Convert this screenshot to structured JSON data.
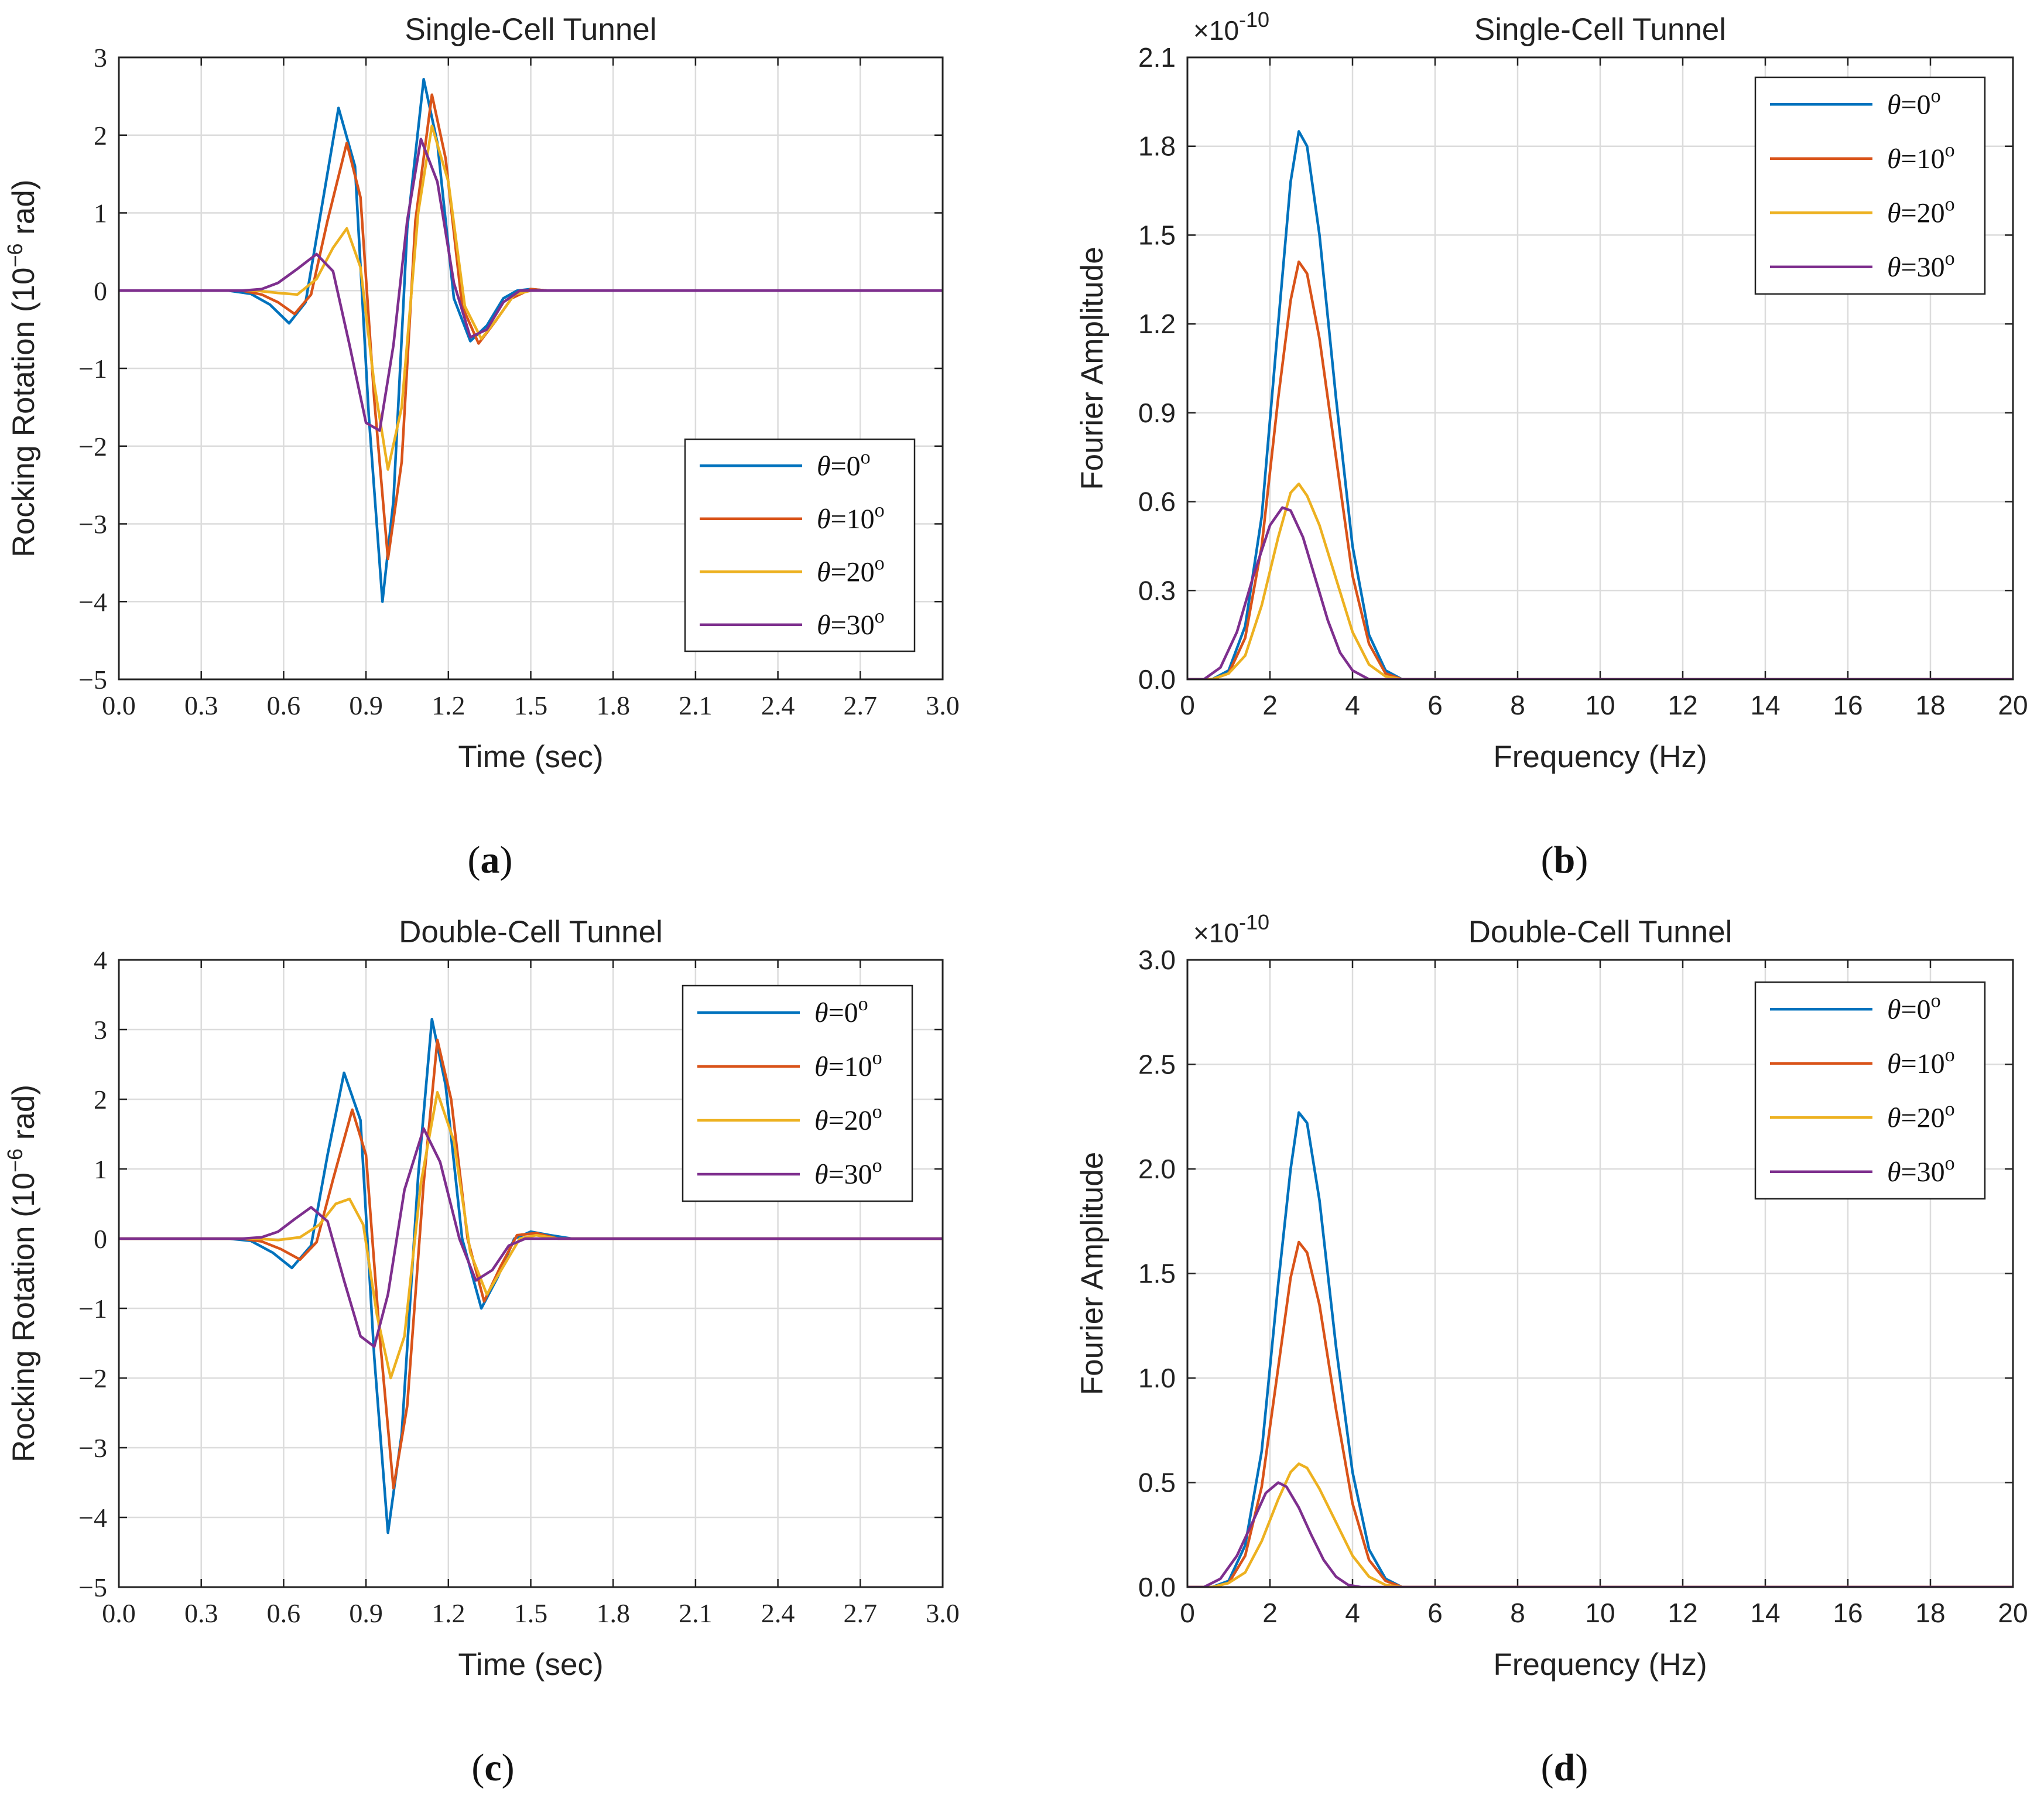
{
  "figure": {
    "captions": [
      "(a)",
      "(b)",
      "(c)",
      "(d)"
    ]
  },
  "colors": {
    "series": [
      "#0072BD",
      "#D95319",
      "#EDB120",
      "#7E2F8E"
    ],
    "grid": "#dcdcdc",
    "axis": "#222222"
  },
  "chart_data": [
    {
      "id": "a",
      "type": "line",
      "title": "Single-Cell Tunnel",
      "xlabel": "Time (sec)",
      "ylabel": "Rocking Rotation (10",
      "ylabel_exp": "−6",
      "ylabel_suffix": " rad)",
      "xlim": [
        0,
        3
      ],
      "ylim": [
        -5,
        3
      ],
      "xticks": [
        "0.0",
        "0.3",
        "0.6",
        "0.9",
        "1.2",
        "1.5",
        "1.8",
        "2.1",
        "2.4",
        "2.7",
        "3.0"
      ],
      "yticks": [
        "3",
        "2",
        "1",
        "0",
        "−1",
        "−2",
        "−3",
        "−4",
        "−5"
      ],
      "legend_position": "bottom-right",
      "series": [
        {
          "name": "θ=0°",
          "theta": "θ",
          "value": "=0",
          "deg": "o",
          "x": [
            0.0,
            0.4,
            0.48,
            0.55,
            0.62,
            0.68,
            0.74,
            0.8,
            0.86,
            0.91,
            0.96,
            1.0,
            1.05,
            1.11,
            1.16,
            1.22,
            1.28,
            1.34,
            1.4,
            1.45,
            1.5,
            1.56,
            1.65,
            3.0
          ],
          "y": [
            0,
            0,
            -0.04,
            -0.18,
            -0.42,
            -0.15,
            1.1,
            2.35,
            1.6,
            -1.6,
            -4.0,
            -2.7,
            0.8,
            2.72,
            1.9,
            -0.1,
            -0.65,
            -0.45,
            -0.1,
            0.0,
            0.02,
            0.0,
            0,
            0
          ]
        },
        {
          "name": "θ=10°",
          "theta": "θ",
          "value": "=10",
          "deg": "o",
          "x": [
            0.0,
            0.45,
            0.52,
            0.58,
            0.64,
            0.7,
            0.76,
            0.83,
            0.88,
            0.93,
            0.98,
            1.03,
            1.08,
            1.14,
            1.19,
            1.25,
            1.31,
            1.37,
            1.43,
            1.5,
            1.56,
            1.65,
            3.0
          ],
          "y": [
            0,
            0,
            -0.05,
            -0.15,
            -0.3,
            -0.05,
            0.9,
            1.9,
            1.2,
            -1.4,
            -3.45,
            -2.2,
            0.9,
            2.52,
            1.7,
            -0.2,
            -0.68,
            -0.4,
            -0.1,
            0.02,
            0.0,
            0,
            0
          ]
        },
        {
          "name": "θ=20°",
          "theta": "θ",
          "value": "=20",
          "deg": "o",
          "x": [
            0.0,
            0.5,
            0.58,
            0.65,
            0.72,
            0.78,
            0.83,
            0.88,
            0.93,
            0.98,
            1.03,
            1.09,
            1.14,
            1.2,
            1.26,
            1.32,
            1.38,
            1.44,
            1.5,
            1.58,
            3.0
          ],
          "y": [
            0,
            0,
            -0.03,
            -0.05,
            0.15,
            0.55,
            0.8,
            0.3,
            -1.2,
            -2.3,
            -1.5,
            1.0,
            2.12,
            1.4,
            -0.2,
            -0.62,
            -0.35,
            -0.05,
            0.0,
            0,
            0
          ]
        },
        {
          "name": "θ=30°",
          "theta": "θ",
          "value": "=30",
          "deg": "o",
          "x": [
            0.0,
            0.45,
            0.52,
            0.58,
            0.65,
            0.72,
            0.78,
            0.84,
            0.9,
            0.95,
            1.0,
            1.05,
            1.1,
            1.16,
            1.22,
            1.28,
            1.34,
            1.4,
            1.46,
            1.52,
            3.0
          ],
          "y": [
            0,
            0,
            0.02,
            0.1,
            0.28,
            0.47,
            0.25,
            -0.7,
            -1.7,
            -1.8,
            -0.7,
            0.9,
            1.95,
            1.4,
            0.1,
            -0.6,
            -0.5,
            -0.15,
            0.0,
            0,
            0
          ]
        }
      ]
    },
    {
      "id": "b",
      "type": "line",
      "title": "Single-Cell Tunnel",
      "xlabel": "Frequency (Hz)",
      "ylabel": "Fourier Amplitude",
      "scale_label": "×10",
      "scale_exp": "-10",
      "xlim": [
        0,
        20
      ],
      "ylim": [
        0,
        2.1
      ],
      "xticks": [
        "0",
        "2",
        "4",
        "6",
        "8",
        "10",
        "12",
        "14",
        "16",
        "18",
        "20"
      ],
      "yticks": [
        "2.1",
        "1.8",
        "1.5",
        "1.2",
        "0.9",
        "0.6",
        "0.3",
        "0.0"
      ],
      "legend_position": "top-right",
      "series": [
        {
          "name": "θ=0°",
          "theta": "θ",
          "value": "=0",
          "deg": "o",
          "x": [
            0,
            0.6,
            1.0,
            1.4,
            1.8,
            2.2,
            2.5,
            2.7,
            2.9,
            3.2,
            3.6,
            4.0,
            4.4,
            4.8,
            5.2,
            6.0,
            20
          ],
          "y": [
            0,
            0,
            0.03,
            0.18,
            0.55,
            1.2,
            1.68,
            1.85,
            1.8,
            1.5,
            0.95,
            0.45,
            0.15,
            0.03,
            0,
            0,
            0
          ]
        },
        {
          "name": "θ=10°",
          "theta": "θ",
          "value": "=10",
          "deg": "o",
          "x": [
            0,
            0.6,
            1.0,
            1.4,
            1.8,
            2.2,
            2.5,
            2.7,
            2.9,
            3.2,
            3.6,
            4.0,
            4.4,
            4.8,
            5.2,
            6.0,
            20
          ],
          "y": [
            0,
            0,
            0.02,
            0.14,
            0.45,
            0.95,
            1.28,
            1.41,
            1.37,
            1.15,
            0.75,
            0.35,
            0.12,
            0.02,
            0,
            0,
            0
          ]
        },
        {
          "name": "θ=20°",
          "theta": "θ",
          "value": "=20",
          "deg": "o",
          "x": [
            0,
            0.6,
            1.0,
            1.4,
            1.8,
            2.2,
            2.5,
            2.7,
            2.9,
            3.2,
            3.6,
            4.0,
            4.4,
            4.8,
            5.2,
            6.0,
            20
          ],
          "y": [
            0,
            0,
            0.02,
            0.08,
            0.25,
            0.48,
            0.63,
            0.66,
            0.62,
            0.52,
            0.34,
            0.16,
            0.05,
            0.01,
            0,
            0,
            0
          ]
        },
        {
          "name": "θ=30°",
          "theta": "θ",
          "value": "=30",
          "deg": "o",
          "x": [
            0,
            0.4,
            0.8,
            1.2,
            1.6,
            2.0,
            2.3,
            2.5,
            2.8,
            3.1,
            3.4,
            3.7,
            4.0,
            4.4,
            5.0,
            20
          ],
          "y": [
            0,
            0,
            0.04,
            0.16,
            0.35,
            0.52,
            0.58,
            0.57,
            0.48,
            0.34,
            0.2,
            0.09,
            0.03,
            0,
            0,
            0
          ]
        }
      ]
    },
    {
      "id": "c",
      "type": "line",
      "title": "Double-Cell Tunnel",
      "xlabel": "Time (sec)",
      "ylabel": "Rocking Rotation (10",
      "ylabel_exp": "−6",
      "ylabel_suffix": " rad)",
      "xlim": [
        0,
        3
      ],
      "ylim": [
        -5,
        4
      ],
      "xticks": [
        "0.0",
        "0.3",
        "0.6",
        "0.9",
        "1.2",
        "1.5",
        "1.8",
        "2.1",
        "2.4",
        "2.7",
        "3.0"
      ],
      "yticks": [
        "4",
        "3",
        "2",
        "1",
        "0",
        "−1",
        "−2",
        "−3",
        "−4",
        "−5"
      ],
      "legend_position": "top-right",
      "series": [
        {
          "name": "θ=0°",
          "theta": "θ",
          "value": "=0",
          "deg": "o",
          "x": [
            0.0,
            0.4,
            0.48,
            0.56,
            0.63,
            0.7,
            0.76,
            0.82,
            0.88,
            0.93,
            0.98,
            1.03,
            1.09,
            1.14,
            1.19,
            1.25,
            1.32,
            1.38,
            1.44,
            1.5,
            1.57,
            1.65,
            1.75,
            3.0
          ],
          "y": [
            0,
            0,
            -0.03,
            -0.2,
            -0.42,
            -0.1,
            1.2,
            2.38,
            1.7,
            -1.7,
            -4.22,
            -2.8,
            0.9,
            3.15,
            2.2,
            0.0,
            -1.0,
            -0.55,
            0.0,
            0.1,
            0.05,
            0.0,
            0,
            0
          ]
        },
        {
          "name": "θ=10°",
          "theta": "θ",
          "value": "=10",
          "deg": "o",
          "x": [
            0.0,
            0.45,
            0.52,
            0.59,
            0.66,
            0.72,
            0.78,
            0.85,
            0.9,
            0.95,
            1.0,
            1.05,
            1.11,
            1.16,
            1.21,
            1.27,
            1.33,
            1.39,
            1.45,
            1.52,
            1.6,
            1.7,
            3.0
          ],
          "y": [
            0,
            0,
            -0.04,
            -0.15,
            -0.3,
            -0.05,
            0.85,
            1.85,
            1.2,
            -1.4,
            -3.58,
            -2.4,
            0.8,
            2.85,
            2.0,
            0.0,
            -0.9,
            -0.4,
            0.05,
            0.08,
            0.0,
            0,
            0
          ]
        },
        {
          "name": "θ=20°",
          "theta": "θ",
          "value": "=20",
          "deg": "o",
          "x": [
            0.0,
            0.5,
            0.58,
            0.66,
            0.73,
            0.79,
            0.84,
            0.89,
            0.94,
            0.99,
            1.04,
            1.1,
            1.16,
            1.22,
            1.28,
            1.34,
            1.4,
            1.46,
            1.52,
            1.6,
            3.0
          ],
          "y": [
            0,
            0,
            -0.02,
            0.02,
            0.2,
            0.5,
            0.57,
            0.2,
            -1.1,
            -2.0,
            -1.4,
            0.8,
            2.1,
            1.4,
            -0.2,
            -0.8,
            -0.4,
            0.0,
            0.05,
            0,
            0
          ]
        },
        {
          "name": "θ=30°",
          "theta": "θ",
          "value": "=30",
          "deg": "o",
          "x": [
            0.0,
            0.45,
            0.52,
            0.58,
            0.64,
            0.7,
            0.76,
            0.82,
            0.88,
            0.93,
            0.98,
            1.04,
            1.11,
            1.17,
            1.24,
            1.3,
            1.36,
            1.42,
            1.48,
            1.56,
            3.0
          ],
          "y": [
            0,
            0,
            0.02,
            0.1,
            0.28,
            0.45,
            0.25,
            -0.6,
            -1.4,
            -1.55,
            -0.8,
            0.7,
            1.58,
            1.1,
            0.0,
            -0.6,
            -0.45,
            -0.1,
            0.0,
            0,
            0
          ]
        }
      ]
    },
    {
      "id": "d",
      "type": "line",
      "title": "Double-Cell Tunnel",
      "xlabel": "Frequency (Hz)",
      "ylabel": "Fourier Amplitude",
      "scale_label": "×10",
      "scale_exp": "-10",
      "xlim": [
        0,
        20
      ],
      "ylim": [
        0,
        3.0
      ],
      "xticks": [
        "0",
        "2",
        "4",
        "6",
        "8",
        "10",
        "12",
        "14",
        "16",
        "18",
        "20"
      ],
      "yticks": [
        "3.0",
        "2.5",
        "2.0",
        "1.5",
        "1.0",
        "0.5",
        "0.0"
      ],
      "legend_position": "top-right",
      "series": [
        {
          "name": "θ=0°",
          "theta": "θ",
          "value": "=0",
          "deg": "o",
          "x": [
            0,
            0.6,
            1.0,
            1.4,
            1.8,
            2.2,
            2.5,
            2.7,
            2.9,
            3.2,
            3.6,
            4.0,
            4.4,
            4.8,
            5.2,
            6.0,
            20
          ],
          "y": [
            0,
            0,
            0.03,
            0.2,
            0.65,
            1.45,
            2.0,
            2.27,
            2.22,
            1.85,
            1.15,
            0.55,
            0.18,
            0.04,
            0,
            0,
            0
          ]
        },
        {
          "name": "θ=10°",
          "theta": "θ",
          "value": "=10",
          "deg": "o",
          "x": [
            0,
            0.6,
            1.0,
            1.4,
            1.8,
            2.2,
            2.5,
            2.7,
            2.9,
            3.2,
            3.6,
            4.0,
            4.4,
            4.8,
            5.2,
            6.0,
            20
          ],
          "y": [
            0,
            0,
            0.02,
            0.15,
            0.48,
            1.05,
            1.48,
            1.65,
            1.6,
            1.35,
            0.85,
            0.4,
            0.13,
            0.03,
            0,
            0,
            0
          ]
        },
        {
          "name": "θ=20°",
          "theta": "θ",
          "value": "=20",
          "deg": "o",
          "x": [
            0,
            0.6,
            1.0,
            1.4,
            1.8,
            2.2,
            2.5,
            2.7,
            2.9,
            3.2,
            3.6,
            4.0,
            4.4,
            4.8,
            5.2,
            6.0,
            20
          ],
          "y": [
            0,
            0,
            0.02,
            0.07,
            0.22,
            0.42,
            0.55,
            0.59,
            0.57,
            0.47,
            0.31,
            0.15,
            0.05,
            0.01,
            0,
            0,
            0
          ]
        },
        {
          "name": "θ=30°",
          "theta": "θ",
          "value": "=30",
          "deg": "o",
          "x": [
            0,
            0.4,
            0.8,
            1.2,
            1.6,
            1.9,
            2.2,
            2.4,
            2.7,
            3.0,
            3.3,
            3.6,
            3.9,
            4.2,
            5.0,
            20
          ],
          "y": [
            0,
            0,
            0.04,
            0.15,
            0.32,
            0.45,
            0.5,
            0.48,
            0.38,
            0.25,
            0.13,
            0.05,
            0.01,
            0,
            0,
            0
          ]
        }
      ]
    }
  ]
}
